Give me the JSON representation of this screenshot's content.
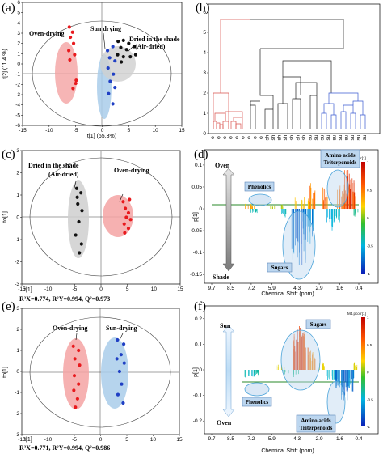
{
  "panels": {
    "a": {
      "label": "(a)"
    },
    "b": {
      "label": "(b)"
    },
    "c": {
      "label": "(c)"
    },
    "d": {
      "label": "(d)"
    },
    "e": {
      "label": "(e)"
    },
    "f": {
      "label": "(f)"
    }
  },
  "annotations": {
    "a_oven": "Oven-drying",
    "a_sun": "Sun drying",
    "a_shade_1": "Dried in the shade",
    "a_shade_2": "(Air-dried)",
    "c_shade_1": "Dried in the shade",
    "c_shade_2": "(Air-dried)",
    "c_oven": "Oven-drying",
    "c_stats": "R²X=0.774, R²Y=0.994, Q²=0.973",
    "d_oven": "Oven",
    "d_shade": "Shade",
    "d_phenolics": "Phenolics",
    "d_sugars": "Sugars",
    "d_amino_1": "Amino acids",
    "d_amino_2": "Triterpenoids",
    "d_cbar_title": "M3.pcorr[1]",
    "e_oven": "Oven-drying",
    "e_sun": "Sun-drying",
    "e_stats": "R²X=0.771, R²Y=0.994, Q²=0.986",
    "f_sun": "Sun",
    "f_oven": "Oven",
    "f_sugars": "Sugars",
    "f_phenolics": "Phenolics",
    "f_amino_1": "Amino acids",
    "f_amino_2": "Triterpenoids",
    "f_cbar_title": "M4.pcorr[1]"
  },
  "colors": {
    "oven": "#e8191d",
    "oven_fill": "#f4a3a3",
    "sun": "#1f3fc4",
    "sun_fill": "#a9cdea",
    "shade": "#111111",
    "shade_fill": "#cfcfcf",
    "box_fill": "#bcd6ef",
    "box_stroke": "#5c86b8",
    "ellipse_stroke": "#555555"
  },
  "chart_data": [
    {
      "id": "a",
      "type": "scatter",
      "xlabel": "t[1] (65.3%)",
      "ylabel": "t[2] (11.4 %)",
      "xlim": [
        -15,
        15
      ],
      "ylim": [
        -6,
        6
      ],
      "xticks": [
        -15,
        -10,
        -5,
        0,
        5,
        10,
        15
      ],
      "yticks": [
        -6,
        -5,
        -4,
        -3,
        -2,
        -1,
        0,
        1,
        2,
        3,
        4,
        5,
        6
      ],
      "series": [
        {
          "name": "Oven-drying",
          "color": "#e8191d",
          "points": [
            [
              -6.2,
              3.6
            ],
            [
              -5.6,
              3.1
            ],
            [
              -6.0,
              2.6
            ],
            [
              -5.4,
              2.0
            ],
            [
              -6.3,
              1.3
            ],
            [
              -5.2,
              0.9
            ],
            [
              -6.1,
              0.4
            ],
            [
              -5.0,
              -1.9
            ],
            [
              -5.5,
              -2.4
            ],
            [
              -4.9,
              -1.6
            ]
          ]
        },
        {
          "name": "Sun drying",
          "color": "#1f3fc4",
          "points": [
            [
              1.0,
              1.3
            ],
            [
              2.0,
              1.7
            ],
            [
              1.4,
              0.6
            ],
            [
              2.4,
              0.3
            ],
            [
              1.1,
              -0.4
            ],
            [
              2.1,
              -1.0
            ],
            [
              1.5,
              -1.7
            ],
            [
              2.4,
              -2.3
            ],
            [
              1.2,
              -2.9
            ],
            [
              2.0,
              -3.9
            ]
          ]
        },
        {
          "name": "Dried in the shade (Air-dried)",
          "color": "#111111",
          "points": [
            [
              3.0,
              2.2
            ],
            [
              4.0,
              2.3
            ],
            [
              5.0,
              2.0
            ],
            [
              3.5,
              1.6
            ],
            [
              4.6,
              1.4
            ],
            [
              6.0,
              1.7
            ],
            [
              2.9,
              0.9
            ],
            [
              4.0,
              0.7
            ],
            [
              5.3,
              0.7
            ],
            [
              6.3,
              0.9
            ],
            [
              3.6,
              0.2
            ]
          ]
        }
      ]
    },
    {
      "id": "b",
      "type": "dendrogram",
      "yticks": [
        0,
        1,
        2,
        3,
        4,
        5,
        6
      ],
      "ylim": [
        0,
        6.4
      ],
      "leaf_labels": [
        "o",
        "o",
        "o",
        "o",
        "o",
        "o",
        "o",
        "o",
        "o",
        "sh",
        "sh",
        "sh",
        "sh",
        "sh",
        "sh",
        "sh",
        "su",
        "su",
        "su",
        "su",
        "su",
        "su",
        "su",
        "su",
        "su",
        "su"
      ]
    },
    {
      "id": "c",
      "type": "scatter",
      "xlabel": "t[1]",
      "ylabel": "to[1]",
      "xlim": [
        -15,
        15
      ],
      "ylim": [
        -3,
        3
      ],
      "xticks": [
        -15,
        -10,
        -5,
        0,
        5,
        10,
        15
      ],
      "yticks": [
        -3,
        -2,
        -1,
        0,
        1,
        2,
        3
      ],
      "series": [
        {
          "name": "Dried in the shade (Air-dried)",
          "color": "#111111",
          "points": [
            [
              -4.6,
              1.3
            ],
            [
              -3.8,
              1.1
            ],
            [
              -4.4,
              0.6
            ],
            [
              -3.6,
              0.3
            ],
            [
              -4.2,
              -0.2
            ],
            [
              -4.8,
              -0.8
            ],
            [
              -3.7,
              -1.2
            ],
            [
              -4.1,
              -1.6
            ],
            [
              -4.5,
              0.9
            ]
          ]
        },
        {
          "name": "Oven-drying",
          "color": "#e8191d",
          "points": [
            [
              4.2,
              0.7
            ],
            [
              5.4,
              0.8
            ],
            [
              4.6,
              0.4
            ],
            [
              5.2,
              0.2
            ],
            [
              4.8,
              0.0
            ],
            [
              5.6,
              -0.1
            ],
            [
              4.4,
              -0.3
            ],
            [
              5.2,
              -0.5
            ],
            [
              4.5,
              -0.7
            ]
          ]
        }
      ]
    },
    {
      "id": "d",
      "type": "area",
      "xlabel": "Chemical Shift (ppm)",
      "ylabel": "p[1]",
      "xticks": [
        9.7,
        8.5,
        7.2,
        5.9,
        4.3,
        2.9,
        1.6,
        0.4
      ],
      "yticks": [
        0.1,
        0.05,
        0,
        -0.05,
        -0.1,
        -0.15
      ],
      "ylim": [
        -0.17,
        0.135
      ],
      "colorbar_ticks": [
        "1",
        "0.5",
        "0",
        "-0.5",
        "-1"
      ]
    },
    {
      "id": "e",
      "type": "scatter",
      "xlabel": "t[1]",
      "ylabel": "to[1]",
      "xlim": [
        -15,
        15
      ],
      "ylim": [
        -3,
        3
      ],
      "xticks": [
        -15,
        -10,
        -5,
        0,
        5,
        10,
        15
      ],
      "yticks": [
        -3,
        -2,
        -1,
        0,
        1,
        2,
        3
      ],
      "series": [
        {
          "name": "Oven-drying",
          "color": "#e8191d",
          "points": [
            [
              -5.2,
              1.2
            ],
            [
              -4.2,
              1.0
            ],
            [
              -4.9,
              0.6
            ],
            [
              -4.0,
              0.3
            ],
            [
              -5.0,
              -0.2
            ],
            [
              -4.2,
              -0.6
            ],
            [
              -5.1,
              -0.9
            ],
            [
              -4.4,
              -1.3
            ],
            [
              -4.8,
              -1.7
            ]
          ]
        },
        {
          "name": "Sun-drying",
          "color": "#1f3fc4",
          "points": [
            [
              3.2,
              1.5
            ],
            [
              4.4,
              1.3
            ],
            [
              3.9,
              0.8
            ],
            [
              3.1,
              0.6
            ],
            [
              4.5,
              0.4
            ],
            [
              3.6,
              0.0
            ],
            [
              4.0,
              -0.6
            ],
            [
              3.3,
              -1.1
            ],
            [
              4.3,
              -1.5
            ]
          ]
        }
      ]
    },
    {
      "id": "f",
      "type": "area",
      "xlabel": "Chemical Shift (ppm)",
      "ylabel": "p[1]",
      "xticks": [
        9.7,
        8.5,
        7.2,
        5.9,
        4.3,
        2.9,
        1.6,
        0.4
      ],
      "yticks": [
        0.2,
        0.1,
        0,
        -0.1,
        -0.2
      ],
      "ylim": [
        -0.25,
        0.25
      ],
      "colorbar_ticks": [
        "1",
        "0.5",
        "0",
        "-0.5",
        "-1"
      ]
    }
  ]
}
